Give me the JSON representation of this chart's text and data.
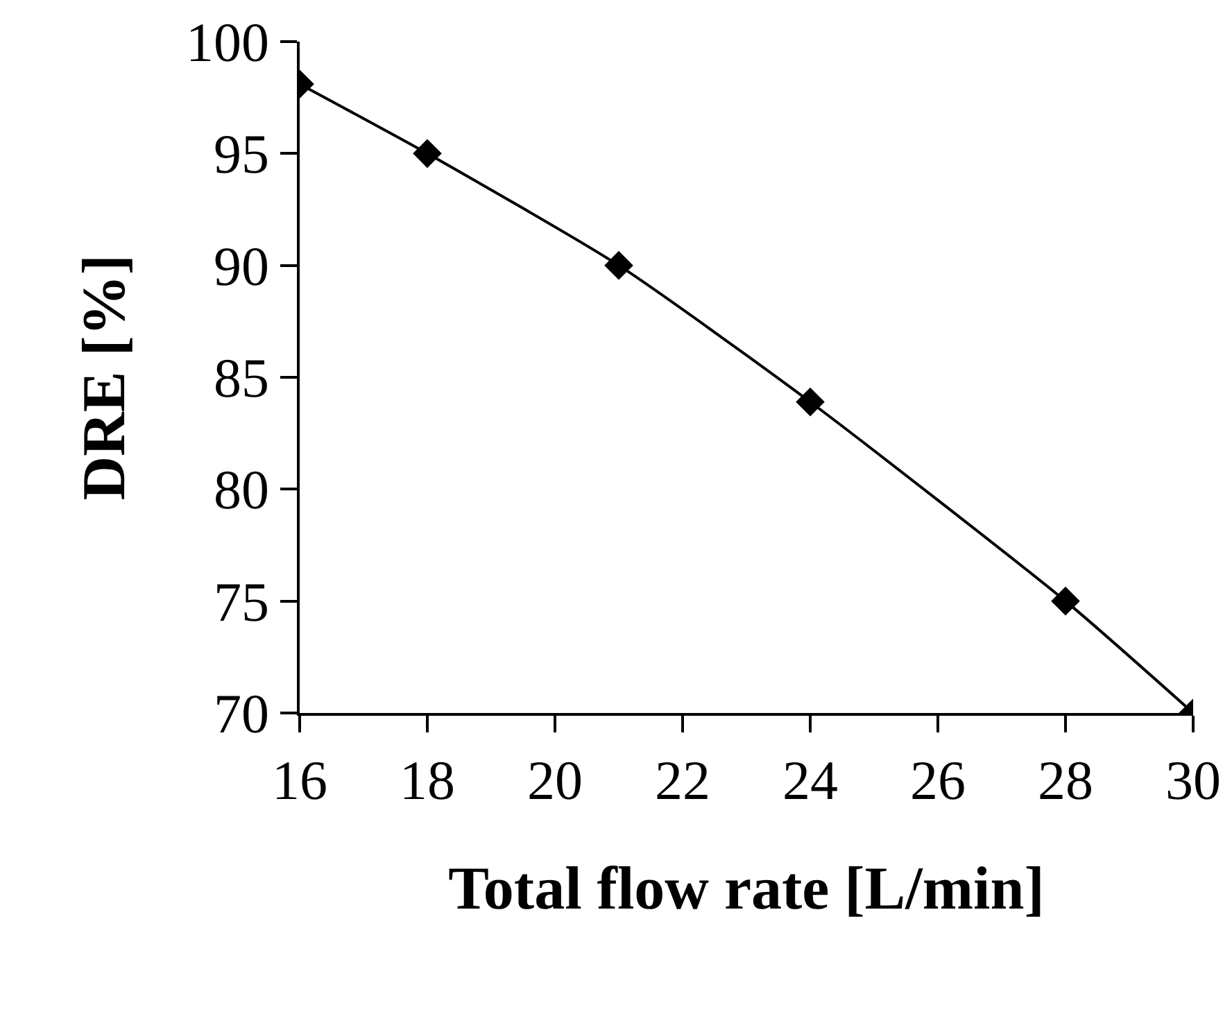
{
  "chart_data": {
    "type": "line",
    "xlabel": "Total flow rate [L/min]",
    "ylabel": "DRE [%]",
    "x": [
      16,
      18,
      21,
      24,
      28,
      30
    ],
    "series": [
      {
        "color": "#000000",
        "values": [
          98.1,
          95,
          90,
          83.9,
          75,
          70
        ]
      }
    ],
    "xlim": [
      16,
      30
    ],
    "xticks": [
      16,
      18,
      20,
      22,
      24,
      26,
      28,
      30
    ],
    "ylim": [
      70,
      100
    ],
    "yticks": [
      70,
      75,
      80,
      85,
      90,
      95,
      100
    ],
    "grid": false,
    "marker": "diamond",
    "line_style": "solid"
  }
}
